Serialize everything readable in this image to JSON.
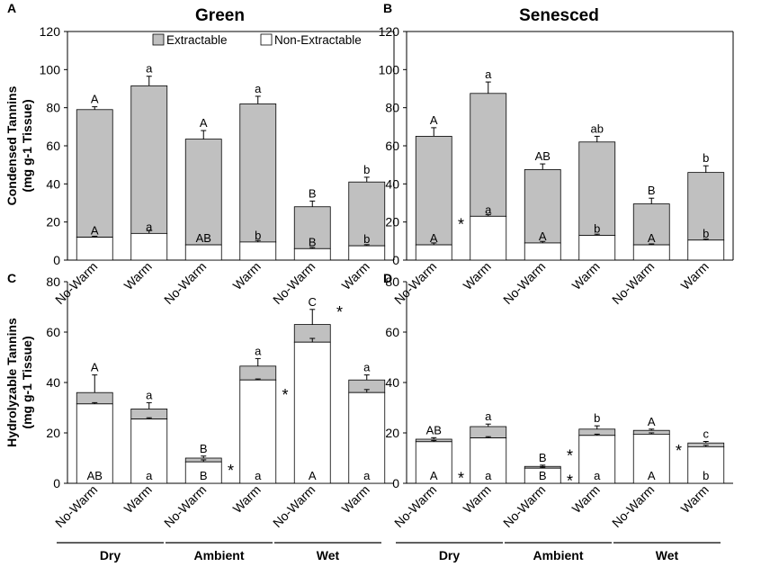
{
  "figure": {
    "y_axis_top": "Condensed Tannins\n(mg g-1 Tissue)",
    "y_axis_bottom": "Hydrolyzable Tannins\n(mg g-1 Tissue)",
    "legend": {
      "extractable": "Extractable",
      "non_extractable": "Non-Extractable"
    },
    "x_categories": [
      "No-Warm",
      "Warm",
      "No-Warm",
      "Warm",
      "No-Warm",
      "Warm"
    ],
    "x_groups": [
      "Dry",
      "Ambient",
      "Wet"
    ],
    "colors": {
      "extractable": "#c0c0c0",
      "non_extractable": "#ffffff",
      "edge": "#000000"
    }
  },
  "chart_data": [
    {
      "panel": "A",
      "type": "bar",
      "stacked": true,
      "title": "Green",
      "ylabel": "Condensed Tannins (mg g-1 Tissue)",
      "ylim": [
        0,
        120
      ],
      "yticks": [
        0,
        20,
        40,
        60,
        80,
        100,
        120
      ],
      "categories": [
        "No-Warm",
        "Warm",
        "No-Warm",
        "Warm",
        "No-Warm",
        "Warm"
      ],
      "groups": [
        "Dry",
        "Ambient",
        "Wet"
      ],
      "legend": true,
      "series": [
        {
          "name": "Non-Extractable",
          "values": [
            12,
            14,
            8,
            9.5,
            6,
            7.5
          ],
          "errors": [
            0.5,
            1.5,
            0,
            0.8,
            0.6,
            0.6
          ],
          "labels": [
            "A",
            "a",
            "AB",
            "b",
            "B",
            "b"
          ]
        },
        {
          "name": "Extractable",
          "values": [
            67,
            77.5,
            55.5,
            72.5,
            22,
            33.5
          ],
          "errors": [
            1.5,
            5,
            4.5,
            4,
            3,
            2.5
          ],
          "labels": [
            "A",
            "a",
            "A",
            "a",
            "B",
            "b"
          ]
        }
      ],
      "stars": []
    },
    {
      "panel": "B",
      "type": "bar",
      "stacked": true,
      "title": "Senesced",
      "ylabel": "",
      "ylim": [
        0,
        120
      ],
      "yticks": [
        0,
        20,
        40,
        60,
        80,
        100,
        120
      ],
      "categories": [
        "No-Warm",
        "Warm",
        "No-Warm",
        "Warm",
        "No-Warm",
        "Warm"
      ],
      "groups": [
        "Dry",
        "Ambient",
        "Wet"
      ],
      "legend": false,
      "series": [
        {
          "name": "Non-Extractable",
          "values": [
            8,
            23,
            9,
            13,
            8,
            10.5
          ],
          "errors": [
            1,
            0.8,
            0.8,
            0.6,
            0.5,
            0.5
          ],
          "labels": [
            "A",
            "a",
            "A",
            "b",
            "A",
            "b"
          ]
        },
        {
          "name": "Extractable",
          "values": [
            57,
            64.5,
            38.5,
            49,
            21.5,
            35.5
          ],
          "errors": [
            4.5,
            6,
            3,
            3,
            3,
            3.5
          ],
          "labels": [
            "A",
            "a",
            "AB",
            "ab",
            "B",
            "b"
          ]
        }
      ],
      "stars": [
        {
          "index": 0,
          "level": 20
        }
      ]
    },
    {
      "panel": "C",
      "type": "bar",
      "stacked": true,
      "title": "",
      "ylabel": "Hydrolyzable Tannins (mg g-1 Tissue)",
      "ylim": [
        0,
        80
      ],
      "yticks": [
        0,
        20,
        40,
        60,
        80
      ],
      "categories": [
        "No-Warm",
        "Warm",
        "No-Warm",
        "Warm",
        "No-Warm",
        "Warm"
      ],
      "groups": [
        "Dry",
        "Ambient",
        "Wet"
      ],
      "legend": false,
      "series": [
        {
          "name": "Non-Extractable",
          "values": [
            31.5,
            25.5,
            8.5,
            41,
            56,
            36
          ],
          "errors": [
            0.5,
            0.5,
            0.8,
            0.4,
            1.5,
            1.2
          ],
          "labels": [
            "AB",
            "a",
            "B",
            "a",
            "A",
            "a"
          ]
        },
        {
          "name": "Extractable",
          "values": [
            4.5,
            4,
            1.5,
            5.5,
            7,
            5
          ],
          "errors": [
            7,
            2.5,
            0.8,
            3,
            6,
            2
          ],
          "labels": [
            "A",
            "a",
            "B",
            "a",
            "C",
            "a"
          ]
        }
      ],
      "stars": [
        {
          "index": 2,
          "level": 6
        },
        {
          "index": 3,
          "level": 36
        },
        {
          "index": 4,
          "level": 69
        }
      ]
    },
    {
      "panel": "D",
      "type": "bar",
      "stacked": true,
      "title": "",
      "ylabel": "",
      "ylim": [
        0,
        80
      ],
      "yticks": [
        0,
        20,
        40,
        60,
        80
      ],
      "categories": [
        "No-Warm",
        "Warm",
        "No-Warm",
        "Warm",
        "No-Warm",
        "Warm"
      ],
      "groups": [
        "Dry",
        "Ambient",
        "Wet"
      ],
      "legend": false,
      "series": [
        {
          "name": "Non-Extractable",
          "values": [
            16.5,
            18,
            6,
            19,
            19.5,
            14.5
          ],
          "errors": [
            0.5,
            0.5,
            0.4,
            0.5,
            0.5,
            0.6
          ],
          "labels": [
            "A",
            "a",
            "B",
            "a",
            "A",
            "b"
          ]
        },
        {
          "name": "Extractable",
          "values": [
            1,
            4.5,
            0.7,
            2.5,
            1.5,
            1.5
          ],
          "errors": [
            0.6,
            1,
            0.5,
            1.3,
            0.5,
            0.6
          ],
          "labels": [
            "AB",
            "a",
            "B",
            "b",
            "A",
            "c"
          ]
        }
      ],
      "stars": [
        {
          "index": 0,
          "level": 3
        },
        {
          "index": 2,
          "level": 2
        },
        {
          "index": 2,
          "level": 12
        },
        {
          "index": 4,
          "level": 14
        }
      ]
    }
  ]
}
